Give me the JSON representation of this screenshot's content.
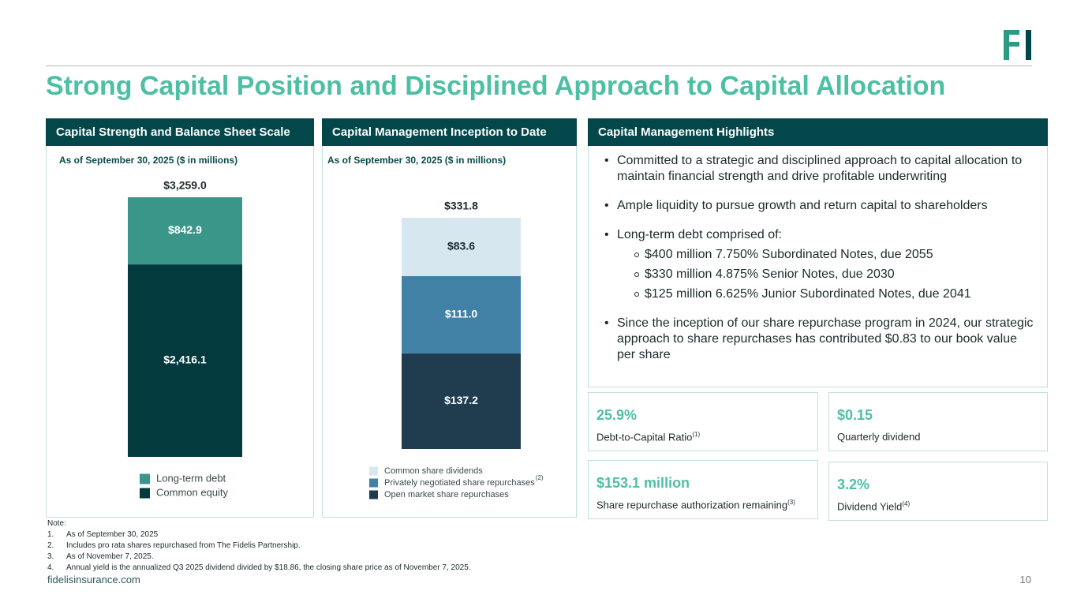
{
  "title": "Strong Capital Position and Disciplined Approach to Capital Allocation",
  "chart_data": [
    {
      "type": "stacked_bar",
      "title": "Capital Strength and Balance Sheet Scale",
      "subtitle": "As of September 30, 2025 ($ in millions)",
      "categories": [
        null
      ],
      "total": 3259.0,
      "total_label": "$3,259.0",
      "ylim": [
        0,
        3259.0
      ],
      "series": [
        {
          "name": "Common equity",
          "color": "#023a3d",
          "label_color": "#ffffff",
          "values": [
            2416.1
          ],
          "value_labels": [
            "$2,416.1"
          ]
        },
        {
          "name": "Long-term debt",
          "color": "#3b968a",
          "label_color": "#ffffff",
          "values": [
            842.9
          ],
          "value_labels": [
            "$842.9"
          ]
        }
      ]
    },
    {
      "type": "stacked_bar",
      "title": "Capital Management Inception to Date",
      "subtitle": "As of September 30, 2025 ($ in millions)",
      "categories": [
        null
      ],
      "total": 331.8,
      "total_label": "$331.8",
      "ylim": [
        0,
        331.8
      ],
      "series": [
        {
          "name": "Open market share repurchases",
          "color": "#1f3d4f",
          "label_color": "#ffffff",
          "values": [
            137.2
          ],
          "value_labels": [
            "$137.2"
          ]
        },
        {
          "name": "Privately negotiated share repurchases",
          "note": "(2)",
          "color": "#4181a6",
          "label_color": "#ffffff",
          "values": [
            111.0
          ],
          "value_labels": [
            "$111.0"
          ]
        },
        {
          "name": "Common share dividends",
          "color": "#d6e7ef",
          "label_color": "#1d2b33",
          "values": [
            83.6
          ],
          "value_labels": [
            "$83.6"
          ]
        }
      ]
    }
  ],
  "highlights": {
    "title": "Capital Management Highlights",
    "bullets": [
      {
        "text": "Committed to a strategic and disciplined approach to capital allocation to maintain financial strength and drive profitable underwriting"
      },
      {
        "text": "Ample liquidity to pursue growth and return capital to shareholders"
      },
      {
        "text": "Long-term debt comprised of:",
        "sub": [
          "$400 million 7.750% Subordinated Notes, due 2055",
          "$330 million 4.875% Senior Notes, due 2030",
          "$125 million 6.625% Junior Subordinated Notes, due 2041"
        ]
      },
      {
        "text": "Since the inception of our share repurchase program in 2024, our strategic approach to share repurchases has contributed $0.83 to our book value per share"
      }
    ]
  },
  "stats": [
    {
      "value": "25.9%",
      "label": "Debt-to-Capital Ratio",
      "note": "(1)"
    },
    {
      "value": "$0.15",
      "label": "Quarterly dividend"
    },
    {
      "value": "$153.1 million",
      "label": "Share repurchase authorization remaining",
      "note": "(3)"
    },
    {
      "value": "3.2%",
      "label": "Dividend Yield",
      "note": "(4)"
    }
  ],
  "notes": {
    "heading": "Note:",
    "items": [
      {
        "number": "1.",
        "text": "As of September 30, 2025"
      },
      {
        "number": "2.",
        "text": "Includes pro rata shares repurchased from The Fidelis Partnership."
      },
      {
        "number": "3.",
        "text": "As of November 7, 2025."
      },
      {
        "number": "4.",
        "text": "Annual yield is the annualized Q3 2025 dividend divided by $18.86, the closing share price as of November 7, 2025."
      }
    ]
  },
  "footer": {
    "website": "fidelisinsurance.com",
    "page": "10"
  }
}
